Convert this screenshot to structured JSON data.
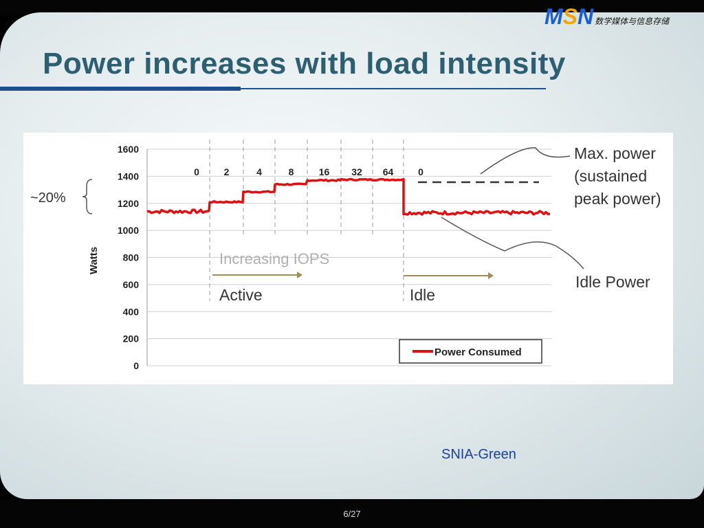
{
  "slide": {
    "logo": {
      "m": "M",
      "s": "S",
      "n": "N",
      "subtitle": "数学媒体与信息存储"
    },
    "title": "Power increases with load intensity",
    "source": "SNIA-Green",
    "page": "6/27",
    "colors": {
      "title": "#2d5f73",
      "rule": "#1d4f8f",
      "series": "#e01010",
      "source": "#1c3fa0"
    }
  },
  "chart_data": {
    "type": "line",
    "title": "",
    "xlabel": "",
    "ylabel": "Watts",
    "ylim": [
      0,
      1600
    ],
    "yticks": [
      0,
      200,
      400,
      600,
      800,
      1000,
      1200,
      1400,
      1600
    ],
    "grid": true,
    "legend": {
      "position": "bottom-right",
      "entries": [
        "Power Consumed"
      ]
    },
    "phase_labels": [
      "0",
      "2",
      "4",
      "8",
      "16",
      "32",
      "64",
      "0"
    ],
    "series": [
      {
        "name": "Power Consumed",
        "color": "#e01010",
        "segments": [
          {
            "label": "0",
            "value": 1140
          },
          {
            "label": "2",
            "value": 1210
          },
          {
            "label": "4",
            "value": 1285
          },
          {
            "label": "8",
            "value": 1340
          },
          {
            "label": "16",
            "value": 1370
          },
          {
            "label": "32",
            "value": 1375
          },
          {
            "label": "64",
            "value": 1375
          },
          {
            "label": "0",
            "value": 1130
          }
        ]
      }
    ],
    "annotations": {
      "bracket_label": "~20%",
      "increasing": "Increasing IOPS",
      "active": "Active",
      "idle": "Idle",
      "max_power": [
        "Max. power",
        "(sustained",
        "peak power)"
      ],
      "idle_power": "Idle Power"
    }
  }
}
